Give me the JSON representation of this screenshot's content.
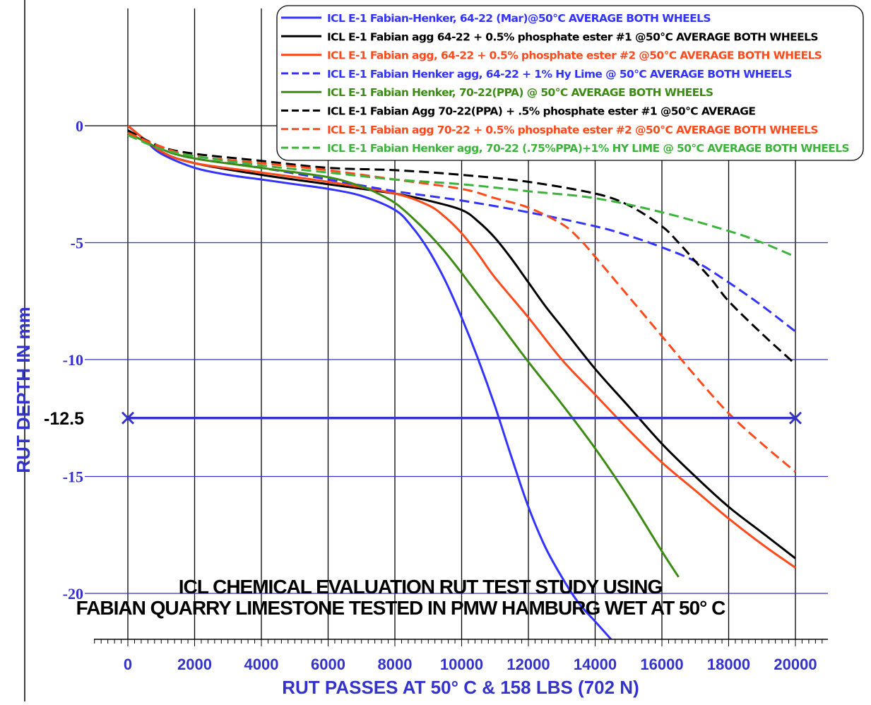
{
  "chart_data": {
    "type": "line",
    "title": "ICL CHEMICAL EVALUATION  RUT TEST STUDY USING",
    "subtitle": "FABIAN QUARRY LIMESTONE TESTED IN PMW HAMBURG WET AT 50° C",
    "xlabel": "RUT PASSES AT 50° C & 158 LBS (702 N)",
    "ylabel": "RUT DEPTH IN mm",
    "xlim": [
      -1000,
      21000
    ],
    "ylim": [
      -22,
      0
    ],
    "x_ticks": [
      "0",
      "2000",
      "4000",
      "6000",
      "8000",
      "10000",
      "12000",
      "14000",
      "16000",
      "18000",
      "20000"
    ],
    "y_ticks": [
      "0",
      "-5",
      "-10",
      "-15",
      "-20"
    ],
    "grid": true,
    "legend_position": "top-right",
    "reference_line": {
      "label": "-12.5",
      "y": -12.5,
      "x": [
        0,
        20000
      ],
      "color": "#3333cc"
    },
    "series": [
      {
        "name": "ICL E-1 Fabian-Henker, 64-22 (Mar)@50°C AVERAGE BOTH WHEELS",
        "color": "#3333ff",
        "dash": "solid",
        "x": [
          0,
          500,
          1000,
          2000,
          3000,
          4000,
          5000,
          6000,
          7000,
          8000,
          8500,
          9000,
          9500,
          10000,
          10500,
          11000,
          11500,
          12000,
          12500,
          13000,
          13500,
          14000,
          14500
        ],
        "y": [
          0,
          -0.6,
          -1.2,
          -1.8,
          -2.1,
          -2.3,
          -2.5,
          -2.7,
          -3.0,
          -3.6,
          -4.3,
          -5.3,
          -6.6,
          -8.2,
          -10.0,
          -12.0,
          -14.2,
          -16.3,
          -18.0,
          -19.3,
          -20.4,
          -21.2,
          -22.0
        ]
      },
      {
        "name": "ICL E-1 Fabian  agg 64-22 + 0.5% phosphate ester #1 @50°C AVERAGE BOTH WHEELS",
        "color": "#000000",
        "dash": "solid",
        "x": [
          0,
          1000,
          2000,
          4000,
          6000,
          8000,
          9000,
          10000,
          10500,
          11000,
          11500,
          12000,
          12500,
          13000,
          14000,
          15000,
          16000,
          17000,
          18000,
          19000,
          20000
        ],
        "y": [
          0,
          -1.1,
          -1.6,
          -2.1,
          -2.5,
          -2.9,
          -3.2,
          -3.6,
          -4.1,
          -4.8,
          -5.7,
          -6.7,
          -7.7,
          -8.6,
          -10.4,
          -12.0,
          -13.6,
          -15.0,
          -16.3,
          -17.4,
          -18.5
        ]
      },
      {
        "name": "ICL E-1 Fabian  agg, 64-22 + 0.5% phosphate ester #2 @50°C AVERAGE BOTH WHEELS",
        "color": "#ff4a1c",
        "dash": "solid",
        "x": [
          0,
          1000,
          2000,
          4000,
          6000,
          8000,
          9000,
          9500,
          10000,
          10500,
          11000,
          12000,
          13000,
          14000,
          15000,
          16000,
          17000,
          18000,
          19000,
          20000
        ],
        "y": [
          0,
          -1.1,
          -1.6,
          -2.0,
          -2.4,
          -2.9,
          -3.4,
          -3.9,
          -4.6,
          -5.5,
          -6.5,
          -8.2,
          -10.0,
          -11.5,
          -13.0,
          -14.4,
          -15.6,
          -16.8,
          -17.9,
          -18.9
        ]
      },
      {
        "name": "ICL E-1 Fabian Henker agg, 64-22 + 1% Hy Lime @ 50°C AVERAGE BOTH WHEELS",
        "color": "#3333ff",
        "dash": "dashed",
        "x": [
          0,
          1000,
          2000,
          4000,
          6000,
          8000,
          10000,
          12000,
          14000,
          15000,
          16000,
          17000,
          18000,
          19000,
          20000
        ],
        "y": [
          -0.2,
          -1.0,
          -1.4,
          -1.8,
          -2.3,
          -2.8,
          -3.2,
          -3.7,
          -4.3,
          -4.7,
          -5.2,
          -5.8,
          -6.7,
          -7.7,
          -8.8
        ]
      },
      {
        "name": "ICL E-1 Fabian Henker, 70-22(PPA) @ 50°C AVERAGE BOTH WHEELS",
        "color": "#3c8c14",
        "dash": "solid",
        "x": [
          0,
          1000,
          2000,
          4000,
          6000,
          7000,
          7500,
          8000,
          8500,
          9000,
          9500,
          10000,
          11000,
          12000,
          13000,
          14000,
          15000,
          16000,
          16500
        ],
        "y": [
          -0.3,
          -1.0,
          -1.4,
          -1.8,
          -2.2,
          -2.6,
          -2.9,
          -3.3,
          -3.9,
          -4.6,
          -5.4,
          -6.3,
          -8.2,
          -10.1,
          -11.9,
          -13.8,
          -15.9,
          -18.2,
          -19.3
        ]
      },
      {
        "name": "ICL E-1 Fabian  Agg 70-22(PPA) + .5% phosphate ester #1  @50°C AVERAGE",
        "color": "#000000",
        "dash": "dashed",
        "x": [
          0,
          1000,
          2000,
          4000,
          6000,
          8000,
          10000,
          12000,
          14000,
          15000,
          16000,
          16500,
          17000,
          17500,
          18000,
          19000,
          20000
        ],
        "y": [
          -0.2,
          -0.9,
          -1.2,
          -1.5,
          -1.8,
          -1.9,
          -2.1,
          -2.4,
          -2.9,
          -3.4,
          -4.3,
          -5.0,
          -5.8,
          -6.6,
          -7.5,
          -8.9,
          -10.2
        ]
      },
      {
        "name": "ICL E-1 Fabian agg 70-22 + 0.5% phosphate ester #2 @50°C AVERAGE BOTH WHEELS",
        "color": "#ff4a1c",
        "dash": "dashed",
        "x": [
          0,
          1000,
          2000,
          4000,
          6000,
          8000,
          10000,
          11000,
          12000,
          13000,
          13500,
          14000,
          15000,
          16000,
          17000,
          18000,
          19000,
          20000
        ],
        "y": [
          -0.3,
          -0.9,
          -1.3,
          -1.6,
          -1.9,
          -2.3,
          -2.7,
          -3.1,
          -3.5,
          -4.2,
          -4.8,
          -5.6,
          -7.3,
          -9.0,
          -10.7,
          -12.3,
          -13.6,
          -14.8
        ]
      },
      {
        "name": "ICL E-1 Fabian Henker agg, 70-22 (.75%PPA)+1% HY LIME @ 50°C AVERAGE BOTH WHEELS",
        "color": "#3cb43c",
        "dash": "dashed",
        "x": [
          0,
          1000,
          2000,
          4000,
          6000,
          8000,
          10000,
          12000,
          14000,
          16000,
          18000,
          19000,
          20000
        ],
        "y": [
          -0.4,
          -1.0,
          -1.3,
          -1.7,
          -2.0,
          -2.3,
          -2.5,
          -2.8,
          -3.1,
          -3.7,
          -4.5,
          -5.0,
          -5.6
        ]
      }
    ]
  }
}
